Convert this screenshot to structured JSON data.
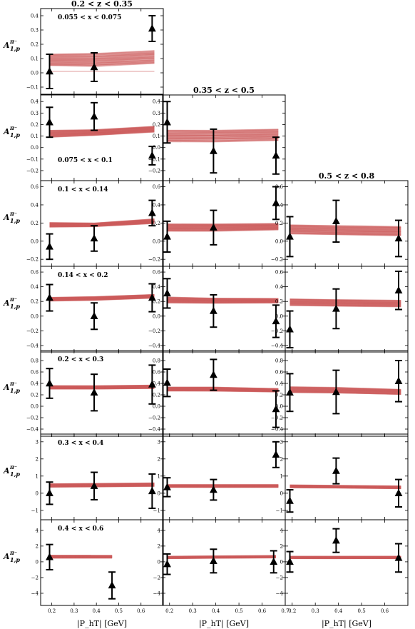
{
  "chart_data": {
    "type": "scatter",
    "figure": {
      "xlabel": "|P_hT| [GeV]",
      "ylabel_main": "A",
      "ylabel_sub": "1,p",
      "ylabel_sup": "π⁻",
      "color_band": "#cd5c5c",
      "color_data": "#000000"
    },
    "columns": [
      {
        "title": "0.2 < z < 0.35",
        "xlim": [
          0.15,
          0.7
        ],
        "xticks": [
          0.2,
          0.3,
          0.4,
          0.5,
          0.6
        ],
        "xtick_labels": [
          "0.2",
          "0.3",
          "0.4",
          "0.5",
          "0.6"
        ]
      },
      {
        "title": "0.35 < z < 0.5",
        "xlim": [
          0.17,
          0.7
        ],
        "xticks": [
          0.2,
          0.3,
          0.4,
          0.5,
          0.6,
          0.7
        ],
        "xtick_labels": [
          "0.2",
          "0.3",
          "0.4",
          "0.5",
          "0.6",
          "0.7"
        ]
      },
      {
        "title": "0.5 < z < 0.8",
        "xlim": [
          0.17,
          0.7
        ],
        "xticks": [
          0.2,
          0.3,
          0.4,
          0.5,
          0.6
        ],
        "xtick_labels": [
          "0.2",
          "0.3",
          "0.4",
          "0.5",
          "0.6"
        ]
      }
    ],
    "rows": [
      {
        "x_range": "0.055 < x < 0.075",
        "ylim": [
          -0.12,
          0.42
        ],
        "yticks": [
          -0.1,
          0,
          0.1,
          0.2,
          0.3,
          0.4
        ],
        "ytick_labels": [
          "−0.1",
          "0.0",
          "0.1",
          "0.2",
          "0.3",
          "0.4"
        ],
        "panels": [
          {
            "col": 0,
            "points": [
              {
                "x": 0.19,
                "y": 0.01,
                "err": 0.12
              },
              {
                "x": 0.39,
                "y": 0.04,
                "err": 0.1
              },
              {
                "x": 0.65,
                "y": 0.31,
                "err": 0.09
              }
            ],
            "band": {
              "x": [
                0.19,
                0.39,
                0.66
              ],
              "center": [
                0.09,
                0.09,
                0.11
              ],
              "halfwidth": [
                0.04,
                0.045,
                0.045
              ]
            }
          }
        ]
      },
      {
        "x_range": "0.075 < x < 0.1",
        "ylim": [
          -0.25,
          0.42
        ],
        "yticks": [
          -0.2,
          -0.1,
          0,
          0.1,
          0.2,
          0.3,
          0.4
        ],
        "ytick_labels": [
          "−0.2",
          "−0.1",
          "0.0",
          "0.1",
          "0.2",
          "0.3",
          "0.4"
        ],
        "panels": [
          {
            "col": 0,
            "points": [
              {
                "x": 0.19,
                "y": 0.22,
                "err": 0.13
              },
              {
                "x": 0.39,
                "y": 0.27,
                "err": 0.12
              },
              {
                "x": 0.65,
                "y": -0.07,
                "err": 0.08
              }
            ],
            "band": {
              "x": [
                0.19,
                0.39,
                0.66
              ],
              "center": [
                0.12,
                0.13,
                0.16
              ],
              "halfwidth": [
                0.03,
                0.025,
                0.025
              ]
            }
          },
          {
            "col": 1,
            "points": [
              {
                "x": 0.19,
                "y": 0.22,
                "err": 0.18
              },
              {
                "x": 0.39,
                "y": -0.03,
                "err": 0.19
              },
              {
                "x": 0.66,
                "y": -0.07,
                "err": 0.16
              }
            ],
            "band": {
              "x": [
                0.19,
                0.39,
                0.67
              ],
              "center": [
                0.1,
                0.1,
                0.11
              ],
              "halfwidth": [
                0.05,
                0.05,
                0.05
              ]
            }
          }
        ]
      },
      {
        "x_range": "0.1 < x < 0.14",
        "ylim": [
          -0.23,
          0.62
        ],
        "yticks": [
          -0.2,
          0,
          0.2,
          0.4,
          0.6
        ],
        "ytick_labels": [
          "−0.2",
          "0.0",
          "0.2",
          "0.4",
          "0.6"
        ],
        "panels": [
          {
            "col": 0,
            "points": [
              {
                "x": 0.19,
                "y": -0.06,
                "err": 0.14
              },
              {
                "x": 0.39,
                "y": 0.03,
                "err": 0.14
              },
              {
                "x": 0.65,
                "y": 0.31,
                "err": 0.14
              }
            ],
            "band": {
              "x": [
                0.19,
                0.39,
                0.66
              ],
              "center": [
                0.18,
                0.18,
                0.22
              ],
              "halfwidth": [
                0.025,
                0.02,
                0.025
              ]
            }
          },
          {
            "col": 1,
            "points": [
              {
                "x": 0.19,
                "y": 0.05,
                "err": 0.17
              },
              {
                "x": 0.39,
                "y": 0.15,
                "err": 0.19
              },
              {
                "x": 0.66,
                "y": 0.42,
                "err": 0.18
              }
            ],
            "band": {
              "x": [
                0.19,
                0.39,
                0.67
              ],
              "center": [
                0.15,
                0.15,
                0.16
              ],
              "halfwidth": [
                0.04,
                0.04,
                0.035
              ]
            }
          },
          {
            "col": 2,
            "points": [
              {
                "x": 0.19,
                "y": 0.05,
                "err": 0.22
              },
              {
                "x": 0.39,
                "y": 0.22,
                "err": 0.23
              },
              {
                "x": 0.66,
                "y": 0.03,
                "err": 0.2
              }
            ],
            "band": {
              "x": [
                0.19,
                0.39,
                0.67
              ],
              "center": [
                0.13,
                0.12,
                0.11
              ],
              "halfwidth": [
                0.05,
                0.05,
                0.05
              ]
            }
          }
        ]
      },
      {
        "x_range": "0.14 < x < 0.2",
        "ylim": [
          -0.43,
          0.62
        ],
        "yticks": [
          -0.4,
          -0.2,
          0,
          0.2,
          0.4,
          0.6
        ],
        "ytick_labels": [
          "−0.4",
          "−0.2",
          "0.0",
          "0.2",
          "0.4",
          "0.6"
        ],
        "panels": [
          {
            "col": 0,
            "points": [
              {
                "x": 0.19,
                "y": 0.25,
                "err": 0.18
              },
              {
                "x": 0.39,
                "y": 0.0,
                "err": 0.18
              },
              {
                "x": 0.65,
                "y": 0.25,
                "err": 0.19
              }
            ],
            "band": {
              "x": [
                0.19,
                0.39,
                0.66
              ],
              "center": [
                0.23,
                0.24,
                0.27
              ],
              "halfwidth": [
                0.025,
                0.025,
                0.025
              ]
            }
          },
          {
            "col": 1,
            "points": [
              {
                "x": 0.19,
                "y": 0.31,
                "err": 0.2
              },
              {
                "x": 0.39,
                "y": 0.07,
                "err": 0.22
              },
              {
                "x": 0.66,
                "y": -0.07,
                "err": 0.22
              }
            ],
            "band": {
              "x": [
                0.19,
                0.39,
                0.67
              ],
              "center": [
                0.22,
                0.21,
                0.21
              ],
              "halfwidth": [
                0.04,
                0.035,
                0.03
              ]
            }
          },
          {
            "col": 2,
            "points": [
              {
                "x": 0.19,
                "y": -0.18,
                "err": 0.25
              },
              {
                "x": 0.39,
                "y": 0.1,
                "err": 0.27
              },
              {
                "x": 0.66,
                "y": 0.35,
                "err": 0.26
              }
            ],
            "band": {
              "x": [
                0.19,
                0.39,
                0.67
              ],
              "center": [
                0.19,
                0.18,
                0.17
              ],
              "halfwidth": [
                0.045,
                0.045,
                0.045
              ]
            }
          }
        ]
      },
      {
        "x_range": "0.2 < x < 0.3",
        "ylim": [
          -0.45,
          0.9
        ],
        "yticks": [
          -0.4,
          -0.2,
          0,
          0.2,
          0.4,
          0.6,
          0.8
        ],
        "ytick_labels": [
          "−0.4",
          "−0.2",
          "0.0",
          "0.2",
          "0.4",
          "0.6",
          "0.8"
        ],
        "panels": [
          {
            "col": 0,
            "points": [
              {
                "x": 0.19,
                "y": 0.4,
                "err": 0.26
              },
              {
                "x": 0.39,
                "y": 0.24,
                "err": 0.32
              },
              {
                "x": 0.65,
                "y": 0.38,
                "err": 0.34
              }
            ],
            "band": {
              "x": [
                0.19,
                0.39,
                0.66
              ],
              "center": [
                0.33,
                0.33,
                0.34
              ],
              "halfwidth": [
                0.03,
                0.03,
                0.03
              ]
            }
          },
          {
            "col": 1,
            "points": [
              {
                "x": 0.19,
                "y": 0.41,
                "err": 0.24
              },
              {
                "x": 0.39,
                "y": 0.55,
                "err": 0.27
              },
              {
                "x": 0.66,
                "y": -0.05,
                "err": 0.32
              }
            ],
            "band": {
              "x": [
                0.19,
                0.39,
                0.67
              ],
              "center": [
                0.3,
                0.3,
                0.28
              ],
              "halfwidth": [
                0.035,
                0.035,
                0.03
              ]
            }
          },
          {
            "col": 2,
            "points": [
              {
                "x": 0.19,
                "y": 0.24,
                "err": 0.33
              },
              {
                "x": 0.39,
                "y": 0.25,
                "err": 0.38
              },
              {
                "x": 0.66,
                "y": 0.44,
                "err": 0.36
              }
            ],
            "band": {
              "x": [
                0.19,
                0.39,
                0.67
              ],
              "center": [
                0.29,
                0.28,
                0.25
              ],
              "halfwidth": [
                0.05,
                0.05,
                0.045
              ]
            }
          }
        ]
      },
      {
        "x_range": "0.3 < x < 0.4",
        "ylim": [
          -1.3,
          3.2
        ],
        "yticks": [
          -1,
          0,
          1,
          2,
          3
        ],
        "ytick_labels": [
          "−1",
          "0",
          "1",
          "2",
          "3"
        ],
        "panels": [
          {
            "col": 0,
            "points": [
              {
                "x": 0.19,
                "y": 0.0,
                "err": 0.65
              },
              {
                "x": 0.39,
                "y": 0.42,
                "err": 0.8
              },
              {
                "x": 0.65,
                "y": 0.12,
                "err": 1.0
              }
            ],
            "band": {
              "x": [
                0.19,
                0.39,
                0.66
              ],
              "center": [
                0.45,
                0.47,
                0.5
              ],
              "halfwidth": [
                0.1,
                0.1,
                0.1
              ]
            }
          },
          {
            "col": 1,
            "points": [
              {
                "x": 0.19,
                "y": 0.35,
                "err": 0.55
              },
              {
                "x": 0.39,
                "y": 0.2,
                "err": 0.6
              },
              {
                "x": 0.66,
                "y": 2.25,
                "err": 0.75
              }
            ],
            "band": {
              "x": [
                0.19,
                0.39,
                0.67
              ],
              "center": [
                0.42,
                0.42,
                0.42
              ],
              "halfwidth": [
                0.08,
                0.08,
                0.08
              ]
            }
          },
          {
            "col": 2,
            "points": [
              {
                "x": 0.19,
                "y": -0.45,
                "err": 0.65
              },
              {
                "x": 0.39,
                "y": 1.3,
                "err": 0.75
              },
              {
                "x": 0.66,
                "y": 0.0,
                "err": 0.8
              }
            ],
            "band": {
              "x": [
                0.19,
                0.39,
                0.67
              ],
              "center": [
                0.4,
                0.38,
                0.34
              ],
              "halfwidth": [
                0.08,
                0.08,
                0.08
              ]
            }
          }
        ]
      },
      {
        "x_range": "0.4 < x < 0.6",
        "ylim": [
          -5.0,
          4.8
        ],
        "yticks": [
          -4,
          -2,
          0,
          2,
          4
        ],
        "ytick_labels": [
          "−4",
          "−2",
          "0",
          "2",
          "4"
        ],
        "panels": [
          {
            "col": 0,
            "points": [
              {
                "x": 0.19,
                "y": 0.6,
                "err": 1.6
              },
              {
                "x": 0.47,
                "y": -3.0,
                "err": 1.7
              }
            ],
            "band": {
              "x": [
                0.19,
                0.47
              ],
              "center": [
                0.65,
                0.65
              ],
              "halfwidth": [
                0.18,
                0.18
              ]
            }
          },
          {
            "col": 1,
            "points": [
              {
                "x": 0.19,
                "y": -0.3,
                "err": 1.3
              },
              {
                "x": 0.39,
                "y": 0.1,
                "err": 1.5
              },
              {
                "x": 0.65,
                "y": 0.0,
                "err": 1.4
              }
            ],
            "band": {
              "x": [
                0.19,
                0.39,
                0.66
              ],
              "center": [
                0.55,
                0.6,
                0.65
              ],
              "halfwidth": [
                0.15,
                0.15,
                0.15
              ]
            }
          },
          {
            "col": 2,
            "points": [
              {
                "x": 0.19,
                "y": 0.0,
                "err": 1.3
              },
              {
                "x": 0.39,
                "y": 2.7,
                "err": 1.5
              },
              {
                "x": 0.66,
                "y": 0.5,
                "err": 1.8
              }
            ],
            "band": {
              "x": [
                0.19,
                0.39,
                0.67
              ],
              "center": [
                0.55,
                0.55,
                0.55
              ],
              "halfwidth": [
                0.15,
                0.15,
                0.15
              ]
            }
          }
        ]
      }
    ]
  }
}
